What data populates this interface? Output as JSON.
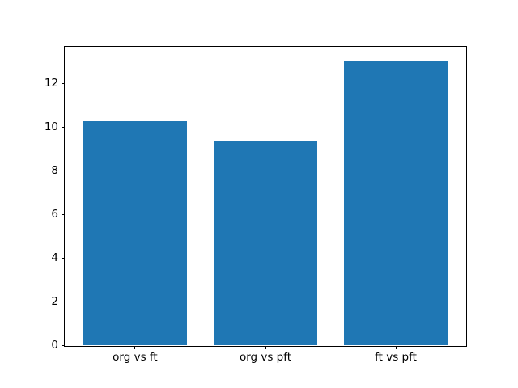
{
  "chart_data": {
    "type": "bar",
    "categories": [
      "org vs ft",
      "org vs pft",
      "ft vs pft"
    ],
    "values": [
      10.29,
      9.36,
      13.05
    ],
    "title": "",
    "xlabel": "",
    "ylabel": "",
    "ylim": [
      0,
      13.7
    ],
    "xlim": [
      -0.54,
      2.54
    ],
    "yticks": [
      0,
      2,
      4,
      6,
      8,
      10,
      12
    ],
    "bar_width": 0.8,
    "bar_color": "#1f77b4",
    "grid": false,
    "legend": null
  },
  "colors": {
    "bar": "#1f77b4",
    "spine": "#000000",
    "background": "#ffffff",
    "text": "#000000"
  }
}
